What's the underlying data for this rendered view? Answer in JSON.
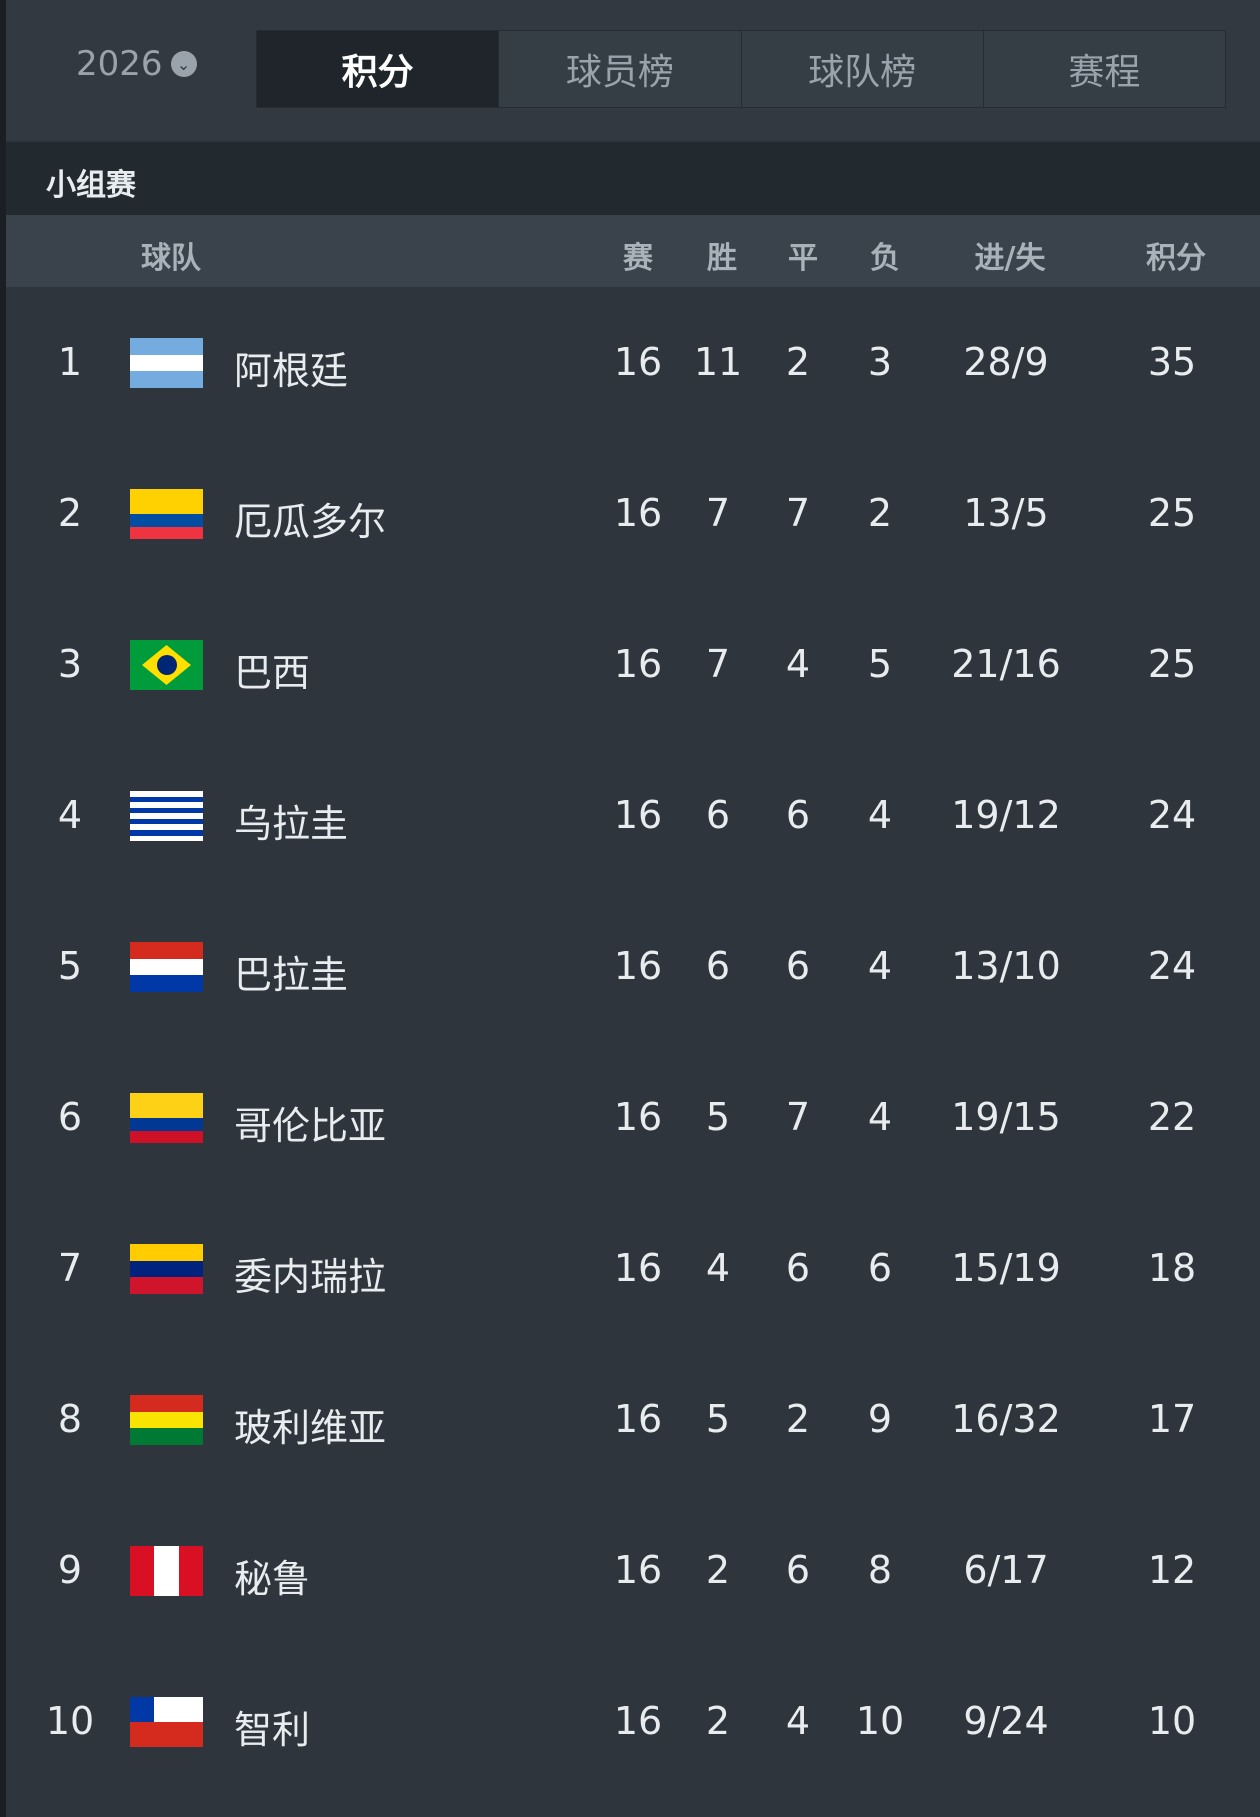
{
  "header": {
    "year": "2026",
    "year_icon": "chevron-down-circle-icon",
    "tabs": [
      {
        "label": "积分",
        "active": true
      },
      {
        "label": "球员榜"
      },
      {
        "label": "球队榜"
      },
      {
        "label": "赛程"
      }
    ]
  },
  "section": "小组赛",
  "columns": {
    "team": "球队",
    "played": "赛",
    "won": "胜",
    "drawn": "平",
    "lost": "负",
    "goals": "进/失",
    "points": "积分"
  },
  "rows": [
    {
      "rank": "1",
      "team": "阿根廷",
      "flag": "argentina-flag",
      "p": "16",
      "w": "11",
      "d": "2",
      "l": "3",
      "g": "28/9",
      "pts": "35"
    },
    {
      "rank": "2",
      "team": "厄瓜多尔",
      "flag": "ecuador-flag",
      "p": "16",
      "w": "7",
      "d": "7",
      "l": "2",
      "g": "13/5",
      "pts": "25"
    },
    {
      "rank": "3",
      "team": "巴西",
      "flag": "brazil-flag",
      "p": "16",
      "w": "7",
      "d": "4",
      "l": "5",
      "g": "21/16",
      "pts": "25"
    },
    {
      "rank": "4",
      "team": "乌拉圭",
      "flag": "uruguay-flag",
      "p": "16",
      "w": "6",
      "d": "6",
      "l": "4",
      "g": "19/12",
      "pts": "24"
    },
    {
      "rank": "5",
      "team": "巴拉圭",
      "flag": "paraguay-flag",
      "p": "16",
      "w": "6",
      "d": "6",
      "l": "4",
      "g": "13/10",
      "pts": "24"
    },
    {
      "rank": "6",
      "team": "哥伦比亚",
      "flag": "colombia-flag",
      "p": "16",
      "w": "5",
      "d": "7",
      "l": "4",
      "g": "19/15",
      "pts": "22"
    },
    {
      "rank": "7",
      "team": "委内瑞拉",
      "flag": "venezuela-flag",
      "p": "16",
      "w": "4",
      "d": "6",
      "l": "6",
      "g": "15/19",
      "pts": "18"
    },
    {
      "rank": "8",
      "team": "玻利维亚",
      "flag": "bolivia-flag",
      "p": "16",
      "w": "5",
      "d": "2",
      "l": "9",
      "g": "16/32",
      "pts": "17"
    },
    {
      "rank": "9",
      "team": "秘鲁",
      "flag": "peru-flag",
      "p": "16",
      "w": "2",
      "d": "6",
      "l": "8",
      "g": "6/17",
      "pts": "12"
    },
    {
      "rank": "10",
      "team": "智利",
      "flag": "chile-flag",
      "p": "16",
      "w": "2",
      "d": "4",
      "l": "10",
      "g": "9/24",
      "pts": "10"
    }
  ]
}
